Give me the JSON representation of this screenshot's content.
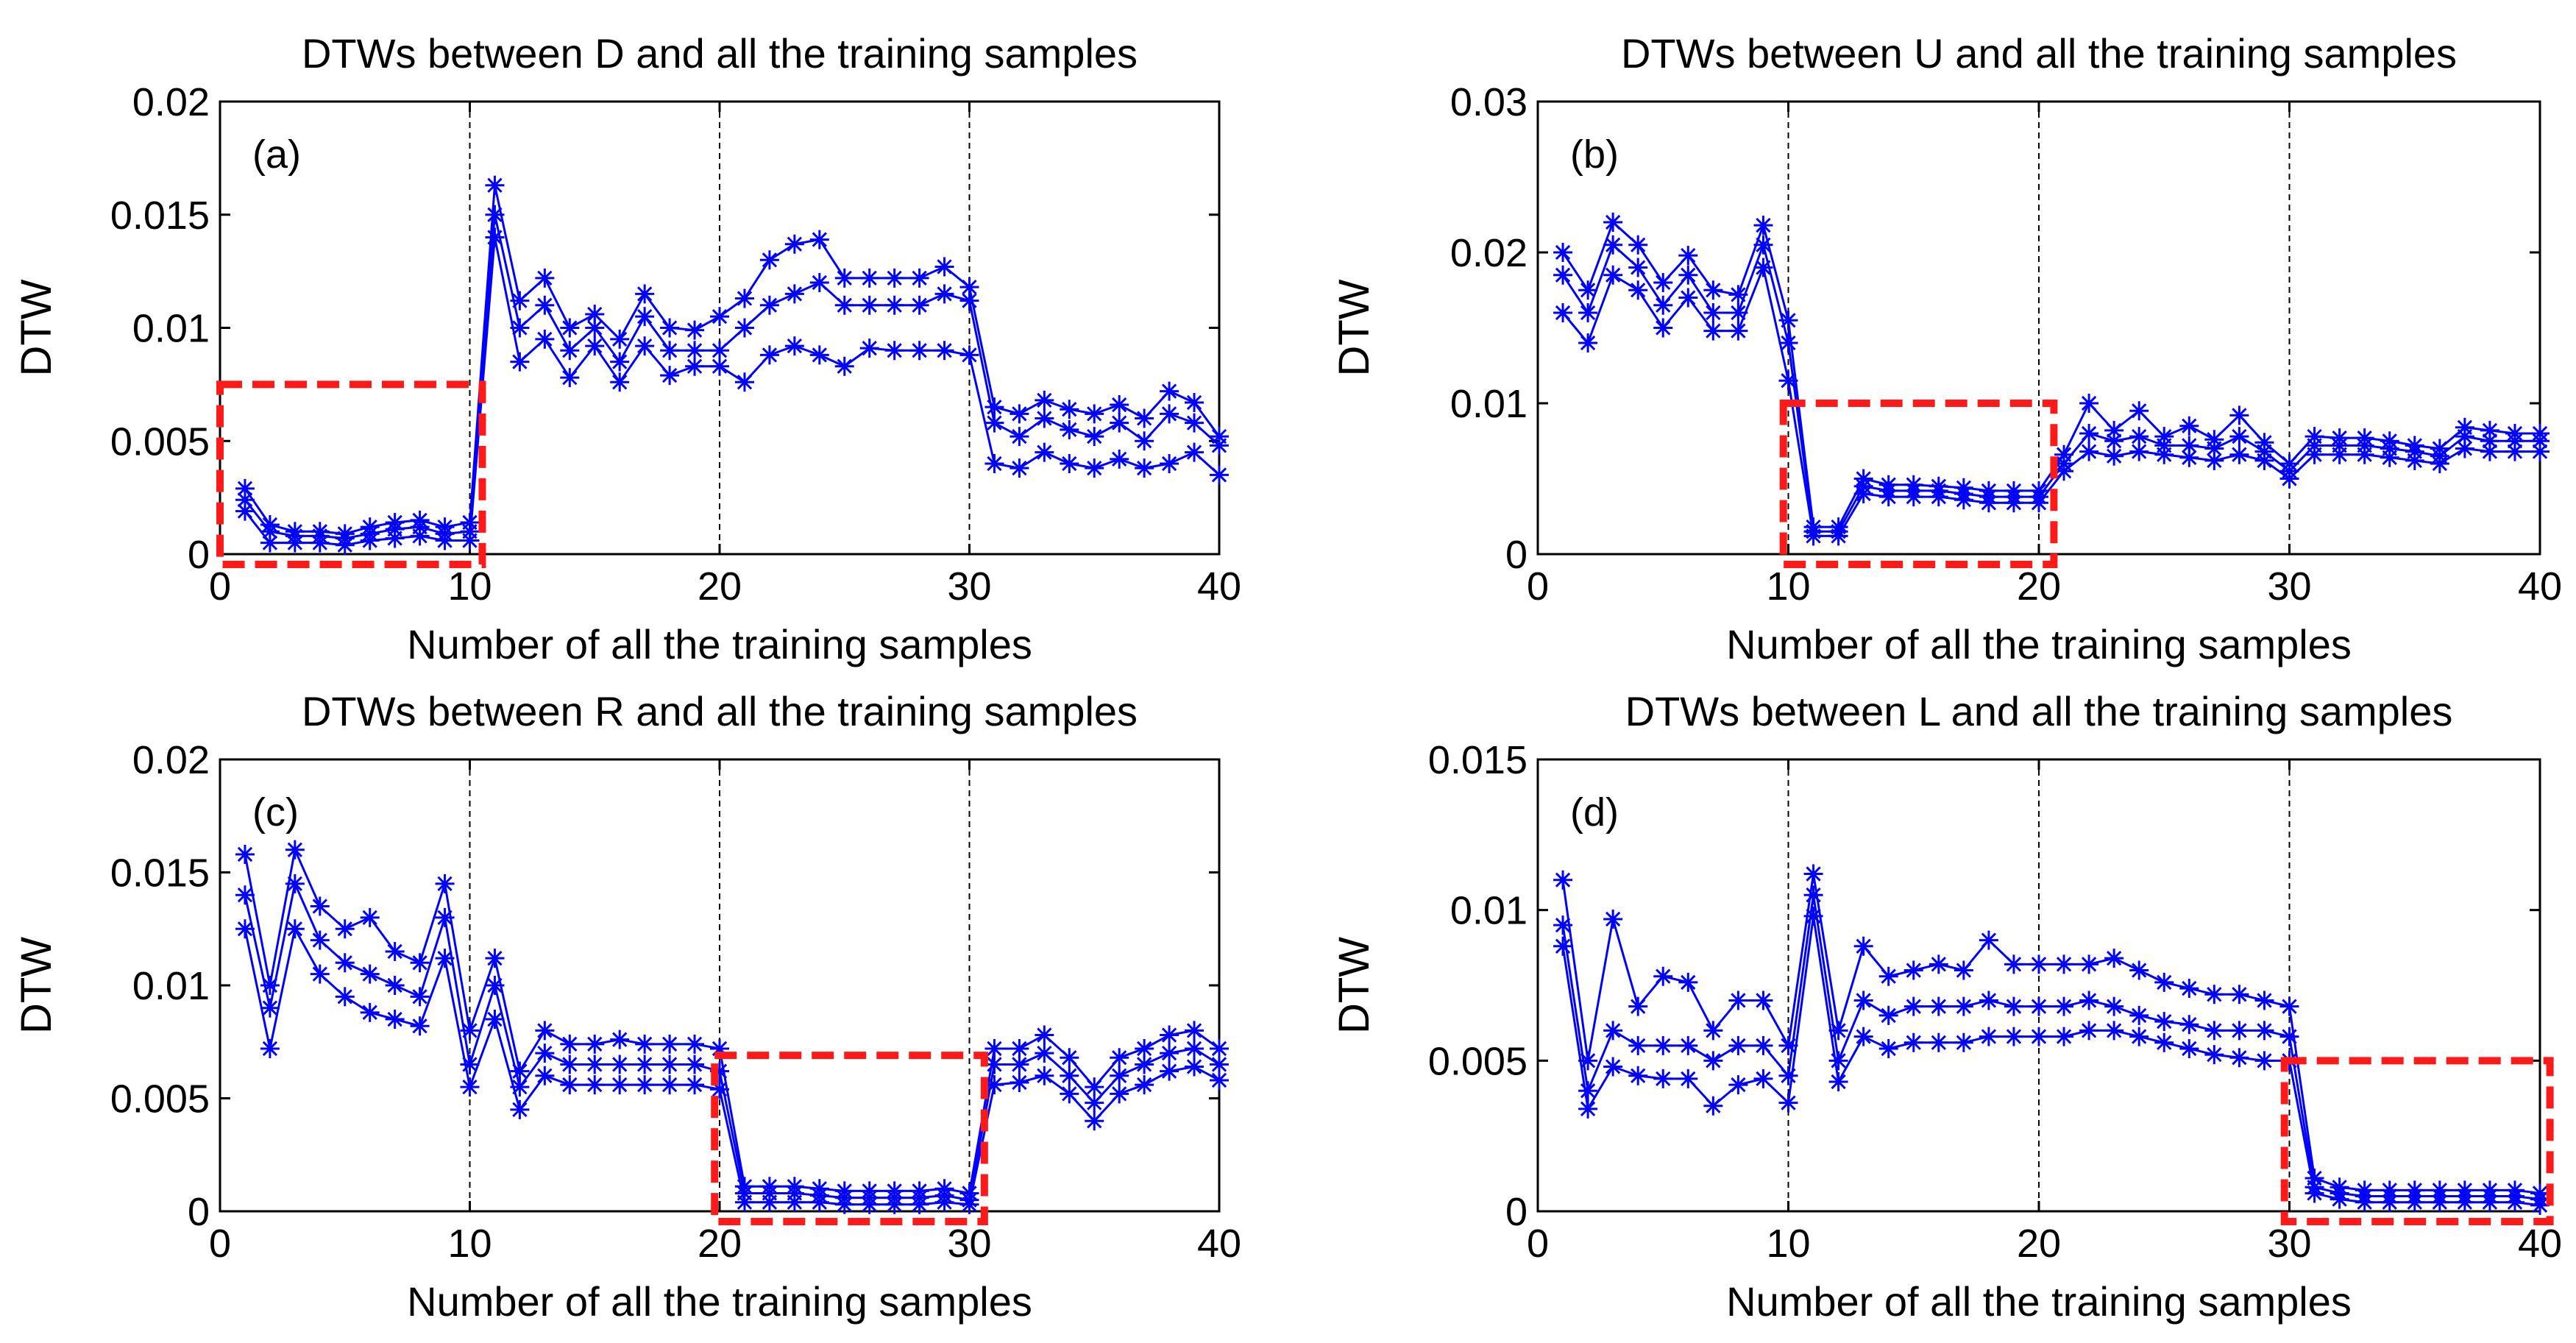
{
  "chart_data": [
    {
      "type": "line",
      "panel_label": "(a)",
      "title": "DTWs between D and all the training samples",
      "xlabel": "Number of all the training samples",
      "ylabel": "DTW",
      "xlim": [
        0,
        40
      ],
      "ylim": [
        0,
        0.02
      ],
      "xticks": [
        "0",
        "10",
        "20",
        "30",
        "40"
      ],
      "yticks": [
        "0",
        "0.005",
        "0.01",
        "0.015",
        "0.02"
      ],
      "ytick_values": [
        0,
        0.005,
        0.01,
        0.015,
        0.02
      ],
      "dashed_vlines": [
        10,
        20,
        30
      ],
      "highlight_box": {
        "x": [
          0,
          10.5
        ],
        "y": [
          0,
          0.0075
        ],
        "color": "#ff1a1a"
      },
      "line_color": "#0000ff",
      "x": [
        1,
        2,
        3,
        4,
        5,
        6,
        7,
        8,
        9,
        10,
        11,
        12,
        13,
        14,
        15,
        16,
        17,
        18,
        19,
        20,
        21,
        22,
        23,
        24,
        25,
        26,
        27,
        28,
        29,
        30,
        31,
        32,
        33,
        34,
        35,
        36,
        37,
        38,
        39,
        40
      ],
      "series": [
        {
          "name": "upper",
          "values": [
            0.0029,
            0.0013,
            0.001,
            0.001,
            0.0009,
            0.0012,
            0.0014,
            0.0015,
            0.0012,
            0.0014,
            0.0163,
            0.0112,
            0.0122,
            0.01,
            0.0106,
            0.0095,
            0.0115,
            0.01,
            0.0099,
            0.0105,
            0.0113,
            0.013,
            0.0137,
            0.0139,
            0.0122,
            0.0122,
            0.0122,
            0.0122,
            0.0127,
            0.0118,
            0.0065,
            0.0062,
            0.0068,
            0.0064,
            0.0062,
            0.0066,
            0.006,
            0.0072,
            0.0067,
            0.0052
          ]
        },
        {
          "name": "middle",
          "values": [
            0.0024,
            0.001,
            0.0008,
            0.0008,
            0.0007,
            0.0009,
            0.0011,
            0.0012,
            0.0009,
            0.001,
            0.015,
            0.01,
            0.011,
            0.009,
            0.01,
            0.0085,
            0.0105,
            0.009,
            0.009,
            0.009,
            0.01,
            0.011,
            0.0115,
            0.012,
            0.011,
            0.011,
            0.011,
            0.011,
            0.0115,
            0.0112,
            0.0058,
            0.0052,
            0.006,
            0.0055,
            0.0052,
            0.0058,
            0.005,
            0.0062,
            0.0058,
            0.0048
          ]
        },
        {
          "name": "lower",
          "values": [
            0.0019,
            0.0005,
            0.0005,
            0.0005,
            0.0004,
            0.0006,
            0.0007,
            0.0008,
            0.0006,
            0.0006,
            0.014,
            0.0085,
            0.0095,
            0.0078,
            0.0092,
            0.0076,
            0.0092,
            0.0079,
            0.0083,
            0.0083,
            0.0076,
            0.0088,
            0.0092,
            0.0088,
            0.0083,
            0.0091,
            0.009,
            0.009,
            0.009,
            0.0088,
            0.004,
            0.0038,
            0.0045,
            0.004,
            0.0038,
            0.0042,
            0.0038,
            0.004,
            0.0045,
            0.0035
          ]
        }
      ]
    },
    {
      "type": "line",
      "panel_label": "(b)",
      "title": "DTWs between U and all the training samples",
      "xlabel": "Number of all the training samples",
      "ylabel": "DTW",
      "xlim": [
        0,
        40
      ],
      "ylim": [
        0,
        0.03
      ],
      "xticks": [
        "0",
        "10",
        "20",
        "30",
        "40"
      ],
      "yticks": [
        "0",
        "0.01",
        "0.02",
        "0.03"
      ],
      "ytick_values": [
        0,
        0.01,
        0.02,
        0.03
      ],
      "dashed_vlines": [
        10,
        20,
        30
      ],
      "highlight_box": {
        "x": [
          9.8,
          20.6
        ],
        "y": [
          0,
          0.01
        ],
        "color": "#ff1a1a"
      },
      "line_color": "#0000ff",
      "x": [
        1,
        2,
        3,
        4,
        5,
        6,
        7,
        8,
        9,
        10,
        11,
        12,
        13,
        14,
        15,
        16,
        17,
        18,
        19,
        20,
        21,
        22,
        23,
        24,
        25,
        26,
        27,
        28,
        29,
        30,
        31,
        32,
        33,
        34,
        35,
        36,
        37,
        38,
        39,
        40
      ],
      "series": [
        {
          "name": "upper",
          "values": [
            0.02,
            0.0175,
            0.022,
            0.0205,
            0.018,
            0.0198,
            0.0175,
            0.0172,
            0.0218,
            0.0155,
            0.0018,
            0.0018,
            0.005,
            0.0046,
            0.0046,
            0.0045,
            0.0044,
            0.0042,
            0.0042,
            0.0042,
            0.0066,
            0.01,
            0.0082,
            0.0095,
            0.0078,
            0.0085,
            0.0076,
            0.0092,
            0.0074,
            0.006,
            0.0078,
            0.0077,
            0.0077,
            0.0075,
            0.0072,
            0.007,
            0.0084,
            0.0082,
            0.008,
            0.008
          ]
        },
        {
          "name": "middle",
          "values": [
            0.0185,
            0.016,
            0.0205,
            0.019,
            0.0165,
            0.0185,
            0.016,
            0.016,
            0.0205,
            0.014,
            0.0015,
            0.0015,
            0.0045,
            0.0042,
            0.0042,
            0.0042,
            0.004,
            0.0038,
            0.0038,
            0.0038,
            0.006,
            0.008,
            0.0075,
            0.0078,
            0.0072,
            0.0072,
            0.007,
            0.0078,
            0.0068,
            0.0055,
            0.0072,
            0.0072,
            0.0072,
            0.007,
            0.0068,
            0.0065,
            0.0078,
            0.0075,
            0.0075,
            0.0075
          ]
        },
        {
          "name": "lower",
          "values": [
            0.016,
            0.014,
            0.0185,
            0.0175,
            0.015,
            0.017,
            0.0148,
            0.0148,
            0.019,
            0.0115,
            0.0012,
            0.0012,
            0.004,
            0.0038,
            0.0038,
            0.0038,
            0.0036,
            0.0034,
            0.0034,
            0.0034,
            0.0055,
            0.0068,
            0.0065,
            0.0068,
            0.0066,
            0.0064,
            0.0062,
            0.0066,
            0.0062,
            0.005,
            0.0066,
            0.0066,
            0.0066,
            0.0064,
            0.0062,
            0.006,
            0.007,
            0.0068,
            0.0068,
            0.0068
          ]
        }
      ]
    },
    {
      "type": "line",
      "panel_label": "(c)",
      "title": "DTWs between R and all the training samples",
      "xlabel": "Number of all the training samples",
      "ylabel": "DTW",
      "xlim": [
        0,
        40
      ],
      "ylim": [
        0,
        0.02
      ],
      "xticks": [
        "0",
        "10",
        "20",
        "30",
        "40"
      ],
      "yticks": [
        "0",
        "0.005",
        "0.01",
        "0.015",
        "0.02"
      ],
      "ytick_values": [
        0,
        0.005,
        0.01,
        0.015,
        0.02
      ],
      "dashed_vlines": [
        10,
        20,
        30
      ],
      "highlight_box": {
        "x": [
          19.8,
          30.6
        ],
        "y": [
          0,
          0.0069
        ],
        "color": "#ff1a1a"
      },
      "line_color": "#0000ff",
      "x": [
        1,
        2,
        3,
        4,
        5,
        6,
        7,
        8,
        9,
        10,
        11,
        12,
        13,
        14,
        15,
        16,
        17,
        18,
        19,
        20,
        21,
        22,
        23,
        24,
        25,
        26,
        27,
        28,
        29,
        30,
        31,
        32,
        33,
        34,
        35,
        36,
        37,
        38,
        39,
        40
      ],
      "series": [
        {
          "name": "upper",
          "values": [
            0.0158,
            0.01,
            0.016,
            0.0135,
            0.0125,
            0.013,
            0.0115,
            0.011,
            0.0145,
            0.008,
            0.0112,
            0.0062,
            0.008,
            0.0074,
            0.0074,
            0.0076,
            0.0074,
            0.0074,
            0.0074,
            0.0072,
            0.0011,
            0.0011,
            0.0011,
            0.001,
            0.0009,
            0.0009,
            0.0009,
            0.0009,
            0.001,
            0.0008,
            0.0072,
            0.0072,
            0.0078,
            0.0068,
            0.0055,
            0.0068,
            0.0072,
            0.0078,
            0.008,
            0.0072
          ]
        },
        {
          "name": "middle",
          "values": [
            0.014,
            0.009,
            0.0145,
            0.012,
            0.011,
            0.0105,
            0.01,
            0.0095,
            0.013,
            0.0065,
            0.01,
            0.0055,
            0.007,
            0.0065,
            0.0065,
            0.0065,
            0.0065,
            0.0065,
            0.0065,
            0.0062,
            0.0008,
            0.0008,
            0.0008,
            0.0007,
            0.0006,
            0.0006,
            0.0006,
            0.0006,
            0.0007,
            0.0005,
            0.0065,
            0.0065,
            0.007,
            0.006,
            0.0048,
            0.006,
            0.0065,
            0.007,
            0.0072,
            0.0065
          ]
        },
        {
          "name": "lower",
          "values": [
            0.0125,
            0.0072,
            0.0125,
            0.0105,
            0.0095,
            0.0088,
            0.0085,
            0.0082,
            0.0112,
            0.0055,
            0.0085,
            0.0045,
            0.006,
            0.0056,
            0.0056,
            0.0056,
            0.0056,
            0.0056,
            0.0056,
            0.0054,
            0.0004,
            0.0004,
            0.0004,
            0.0004,
            0.0003,
            0.0003,
            0.0003,
            0.0003,
            0.0004,
            0.0003,
            0.0056,
            0.0057,
            0.006,
            0.0052,
            0.004,
            0.0052,
            0.0056,
            0.0062,
            0.0064,
            0.0058
          ]
        }
      ]
    },
    {
      "type": "line",
      "panel_label": "(d)",
      "title": "DTWs between L and all the training samples",
      "xlabel": "Number of all the training samples",
      "ylabel": "DTW",
      "xlim": [
        0,
        40
      ],
      "ylim": [
        0,
        0.015
      ],
      "xticks": [
        "0",
        "10",
        "20",
        "30",
        "40"
      ],
      "yticks": [
        "0",
        "0.005",
        "0.01",
        "0.015"
      ],
      "ytick_values": [
        0,
        0.005,
        0.01,
        0.015
      ],
      "dashed_vlines": [
        10,
        20,
        30
      ],
      "highlight_box": {
        "x": [
          29.8,
          40.4
        ],
        "y": [
          0,
          0.005
        ],
        "color": "#ff1a1a"
      },
      "line_color": "#0000ff",
      "x": [
        1,
        2,
        3,
        4,
        5,
        6,
        7,
        8,
        9,
        10,
        11,
        12,
        13,
        14,
        15,
        16,
        17,
        18,
        19,
        20,
        21,
        22,
        23,
        24,
        25,
        26,
        27,
        28,
        29,
        30,
        31,
        32,
        33,
        34,
        35,
        36,
        37,
        38,
        39,
        40
      ],
      "series": [
        {
          "name": "upper",
          "values": [
            0.011,
            0.005,
            0.0097,
            0.0068,
            0.0078,
            0.0076,
            0.006,
            0.007,
            0.007,
            0.0055,
            0.0112,
            0.006,
            0.0088,
            0.0078,
            0.008,
            0.0082,
            0.008,
            0.009,
            0.0082,
            0.0082,
            0.0082,
            0.0082,
            0.0084,
            0.008,
            0.0076,
            0.0074,
            0.0072,
            0.0072,
            0.007,
            0.0068,
            0.0011,
            0.0008,
            0.0007,
            0.0007,
            0.0007,
            0.0007,
            0.0007,
            0.0007,
            0.0007,
            0.0006
          ]
        },
        {
          "name": "middle",
          "values": [
            0.0095,
            0.004,
            0.006,
            0.0055,
            0.0055,
            0.0055,
            0.005,
            0.0055,
            0.0055,
            0.0045,
            0.0105,
            0.005,
            0.007,
            0.0065,
            0.0068,
            0.0068,
            0.0068,
            0.007,
            0.0068,
            0.0068,
            0.0068,
            0.007,
            0.0068,
            0.0065,
            0.0063,
            0.0062,
            0.006,
            0.006,
            0.006,
            0.0058,
            0.0008,
            0.0006,
            0.0005,
            0.0005,
            0.0005,
            0.0005,
            0.0005,
            0.0005,
            0.0005,
            0.0004
          ]
        },
        {
          "name": "lower",
          "values": [
            0.0088,
            0.0034,
            0.0048,
            0.0045,
            0.0044,
            0.0044,
            0.0035,
            0.0042,
            0.0044,
            0.0036,
            0.0098,
            0.0043,
            0.0058,
            0.0054,
            0.0056,
            0.0056,
            0.0056,
            0.0058,
            0.0058,
            0.0058,
            0.0058,
            0.006,
            0.006,
            0.0058,
            0.0056,
            0.0054,
            0.0052,
            0.0051,
            0.005,
            0.005,
            0.0006,
            0.0004,
            0.0003,
            0.0003,
            0.0003,
            0.0003,
            0.0003,
            0.0003,
            0.0003,
            0.0002
          ]
        }
      ]
    }
  ]
}
